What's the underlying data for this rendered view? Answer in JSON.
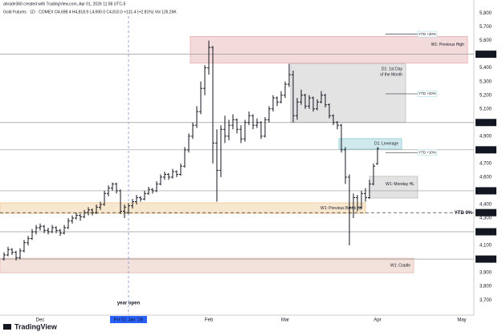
{
  "header": {
    "credit": "ahrade360 created with TradingView.com, Apr 01, 2026 11:58 UTC-5",
    "symbol": "Gold Futures · 1D · COMEX  O4,698.4 H4,818.9 L4,690.0 C4,810.0 +131.4 (+2.81%) Vol 126.26K"
  },
  "footer": {
    "brand": "TradingView"
  },
  "chart_data": {
    "type": "ohlc",
    "color": "#131722",
    "bars": [
      [
        4000,
        4050,
        3990,
        4030
      ],
      [
        4030,
        4090,
        4020,
        4070
      ],
      [
        4070,
        4080,
        4030,
        4050
      ],
      [
        4050,
        4060,
        3990,
        4010
      ],
      [
        4010,
        4080,
        4000,
        4060
      ],
      [
        4060,
        4140,
        4050,
        4120
      ],
      [
        4120,
        4170,
        4100,
        4150
      ],
      [
        4150,
        4220,
        4140,
        4200
      ],
      [
        4200,
        4250,
        4180,
        4230
      ],
      [
        4230,
        4260,
        4210,
        4240
      ],
      [
        4240,
        4250,
        4190,
        4210
      ],
      [
        4210,
        4230,
        4180,
        4200
      ],
      [
        4200,
        4250,
        4190,
        4230
      ],
      [
        4230,
        4240,
        4190,
        4210
      ],
      [
        4210,
        4220,
        4170,
        4190
      ],
      [
        4190,
        4250,
        4180,
        4230
      ],
      [
        4230,
        4300,
        4220,
        4280
      ],
      [
        4280,
        4320,
        4260,
        4300
      ],
      [
        4300,
        4340,
        4290,
        4320
      ],
      [
        4320,
        4330,
        4280,
        4310
      ],
      [
        4310,
        4360,
        4300,
        4340
      ],
      [
        4340,
        4380,
        4320,
        4360
      ],
      [
        4360,
        4370,
        4320,
        4340
      ],
      [
        4340,
        4400,
        4330,
        4380
      ],
      [
        4380,
        4420,
        4360,
        4400
      ],
      [
        4400,
        4500,
        4390,
        4480
      ],
      [
        4480,
        4540,
        4460,
        4520
      ],
      [
        4520,
        4560,
        4500,
        4550
      ],
      [
        4550,
        4560,
        4480,
        4500
      ],
      [
        4500,
        4510,
        4330,
        4350
      ],
      [
        4350,
        4400,
        4300,
        4380
      ],
      [
        4340,
        4410,
        4330,
        4390
      ],
      [
        4390,
        4440,
        4370,
        4420
      ],
      [
        4420,
        4470,
        4400,
        4450
      ],
      [
        4450,
        4460,
        4420,
        4440
      ],
      [
        4440,
        4500,
        4430,
        4480
      ],
      [
        4480,
        4530,
        4470,
        4510
      ],
      [
        4510,
        4520,
        4480,
        4500
      ],
      [
        4500,
        4570,
        4490,
        4550
      ],
      [
        4550,
        4620,
        4540,
        4600
      ],
      [
        4600,
        4640,
        4580,
        4620
      ],
      [
        4620,
        4630,
        4580,
        4600
      ],
      [
        4600,
        4660,
        4590,
        4640
      ],
      [
        4640,
        4650,
        4600,
        4620
      ],
      [
        4620,
        4700,
        4610,
        4680
      ],
      [
        4680,
        4820,
        4670,
        4800
      ],
      [
        4800,
        4920,
        4780,
        4900
      ],
      [
        4900,
        5000,
        4880,
        4980
      ],
      [
        4980,
        5120,
        4960,
        5080
      ],
      [
        5080,
        5300,
        5060,
        5250
      ],
      [
        5250,
        5420,
        5200,
        5400
      ],
      [
        5400,
        5600,
        5350,
        5550
      ],
      [
        5550,
        5560,
        4700,
        4850
      ],
      [
        4850,
        4950,
        4420,
        4650
      ],
      [
        4650,
        4980,
        4600,
        4950
      ],
      [
        4950,
        5050,
        4850,
        4900
      ],
      [
        4900,
        5020,
        4870,
        4980
      ],
      [
        4980,
        5060,
        4950,
        5020
      ],
      [
        5020,
        5030,
        4920,
        4950
      ],
      [
        4950,
        4980,
        4850,
        4880
      ],
      [
        4880,
        5020,
        4860,
        5000
      ],
      [
        5000,
        5080,
        4980,
        5050
      ],
      [
        5050,
        5060,
        4950,
        4980
      ],
      [
        4980,
        5030,
        4960,
        5000
      ],
      [
        5000,
        5010,
        4880,
        4900
      ],
      [
        4900,
        5040,
        4890,
        5020
      ],
      [
        5020,
        5120,
        5000,
        5100
      ],
      [
        5100,
        5200,
        5080,
        5180
      ],
      [
        5180,
        5190,
        5120,
        5150
      ],
      [
        5150,
        5230,
        5140,
        5200
      ],
      [
        5200,
        5300,
        5180,
        5280
      ],
      [
        5280,
        5430,
        5260,
        5350
      ],
      [
        5350,
        5380,
        5000,
        5050
      ],
      [
        5050,
        5180,
        5020,
        5150
      ],
      [
        5150,
        5240,
        5130,
        5200
      ],
      [
        5200,
        5210,
        5100,
        5120
      ],
      [
        5120,
        5200,
        5100,
        5180
      ],
      [
        5180,
        5190,
        5080,
        5100
      ],
      [
        5100,
        5170,
        5090,
        5150
      ],
      [
        5150,
        5230,
        5140,
        5200
      ],
      [
        5200,
        5210,
        5110,
        5130
      ],
      [
        5130,
        5140,
        5030,
        5050
      ],
      [
        5050,
        5060,
        4980,
        5000
      ],
      [
        5000,
        5010,
        4950,
        4980
      ],
      [
        4980,
        4990,
        4780,
        4800
      ],
      [
        4800,
        4820,
        4550,
        4600
      ],
      [
        4600,
        4620,
        4100,
        4380
      ],
      [
        4380,
        4480,
        4300,
        4450
      ],
      [
        4450,
        4470,
        4350,
        4380
      ],
      [
        4380,
        4500,
        4370,
        4480
      ],
      [
        4480,
        4520,
        4420,
        4450
      ],
      [
        4450,
        4580,
        4440,
        4550
      ],
      [
        4550,
        4700,
        4540,
        4680
      ],
      [
        4698.4,
        4818.9,
        4690.0,
        4810.0
      ]
    ],
    "xlim": [
      -1,
      117
    ],
    "xticks": [
      {
        "value": 9,
        "label": "Dec"
      },
      {
        "value": 31,
        "label": "Fri 02 Jan '26"
      },
      {
        "value": 51,
        "label": "Feb"
      },
      {
        "value": 70,
        "label": "Mar"
      },
      {
        "value": 93,
        "label": "Apr"
      },
      {
        "value": 114,
        "label": "May"
      }
    ],
    "ylim": [
      3660,
      5850
    ],
    "yticks": [
      {
        "value": 5800,
        "label": "5,800"
      },
      {
        "value": 5700,
        "label": "5,700"
      },
      {
        "value": 5600,
        "label": "5,600"
      },
      {
        "value": 5500,
        "label": "5,500"
      },
      {
        "value": 5400,
        "label": "5,400"
      },
      {
        "value": 5300,
        "label": "5,300"
      },
      {
        "value": 5200,
        "label": "5,200"
      },
      {
        "value": 5100,
        "label": "5,100"
      },
      {
        "value": 5000,
        "label": "5,000"
      },
      {
        "value": 4900,
        "label": "4,900"
      },
      {
        "value": 4800,
        "label": "4,800"
      },
      {
        "value": 4700,
        "label": "4,700"
      },
      {
        "value": 4600,
        "label": "4,600"
      },
      {
        "value": 4500,
        "label": "4,500"
      },
      {
        "value": 4400,
        "label": "4,400"
      },
      {
        "value": 4300,
        "label": "4,300"
      },
      {
        "value": 4200,
        "label": "4,200"
      },
      {
        "value": 4100,
        "label": "4,100"
      },
      {
        "value": 4000,
        "label": "4,000"
      },
      {
        "value": 3900,
        "label": "3,900"
      },
      {
        "value": 3800,
        "label": "3,800"
      },
      {
        "value": 3700,
        "label": "3,700"
      }
    ],
    "grid": false,
    "year_open": {
      "index": 31,
      "label": "year open"
    },
    "levels": [
      {
        "value": 5500,
        "label": "5,500"
      },
      {
        "value": 5000,
        "label": "5,000"
      },
      {
        "value": 4800,
        "label": "4,800"
      },
      {
        "value": 4500,
        "label": "4,500"
      },
      {
        "value": 4340,
        "label": "4,340",
        "note": "YTD 0%"
      },
      {
        "value": 4200,
        "label": "4,200"
      },
      {
        "value": 4000,
        "label": "4,000"
      }
    ],
    "zones": [
      {
        "lines": [
          "W1: Previous High"
        ],
        "top": 5630,
        "bottom": 5435,
        "start": 46.4,
        "end": 115.4,
        "color": "#e8b8b8"
      },
      {
        "lines": [
          "D1: 1st Day",
          "of the Month"
        ],
        "top": 5430,
        "bottom": 5000,
        "start": 71.4,
        "end": 100,
        "color": "#c8c8c8"
      },
      {
        "lines": [
          "D1: Leverage"
        ],
        "top": 4882,
        "bottom": 4806,
        "start": 83.4,
        "end": 99,
        "color": "#9fd4dc"
      },
      {
        "lines": [
          "W1: Monday HL"
        ],
        "top": 4606,
        "bottom": 4447,
        "start": 91,
        "end": 103,
        "color": "#c8c8c8"
      },
      {
        "lines": [
          "W1: Previous Break Up"
        ],
        "top": 4412,
        "bottom": 4335,
        "start": -1,
        "end": 90,
        "color": "#f0cfa0"
      },
      {
        "lines": [
          "W1: Cradle"
        ],
        "top": 4006,
        "bottom": 3900,
        "start": -1,
        "end": 102,
        "color": "#e8c4b8"
      }
    ],
    "targets": [
      {
        "label": "YTD +30%",
        "value": 5647,
        "start": 95,
        "end": 103
      },
      {
        "label": "YTD +20%",
        "value": 5210,
        "start": 95,
        "end": 103
      },
      {
        "label": "YTD +10%",
        "value": 4780,
        "start": 95,
        "end": 103
      }
    ]
  }
}
